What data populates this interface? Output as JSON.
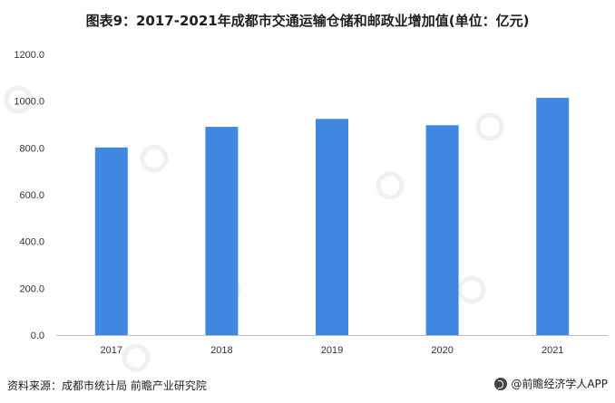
{
  "title": "图表9：2017-2021年成都市交通运输仓储和邮政业增加值(单位：亿元)",
  "footer": {
    "source_label": "资料来源：",
    "source_text": "成都市统计局 前瞻产业研究院",
    "brand": "@前瞻经济学人APP"
  },
  "chart_data": {
    "type": "bar",
    "categories": [
      "2017",
      "2018",
      "2019",
      "2020",
      "2021"
    ],
    "values": [
      802,
      890,
      924,
      897,
      1014
    ],
    "ylim": [
      0,
      1200
    ],
    "yticks": [
      "0.0",
      "200.0",
      "400.0",
      "600.0",
      "800.0",
      "1000.0",
      "1200.0"
    ],
    "bar_color": "#3f87e0",
    "grid": false,
    "legend": "none",
    "title": "",
    "xlabel": "",
    "ylabel": ""
  }
}
